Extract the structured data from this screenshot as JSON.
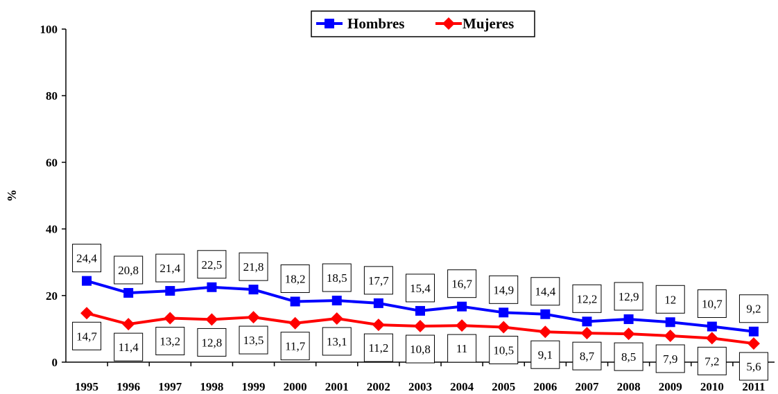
{
  "chart_data": {
    "type": "line",
    "title": "",
    "xlabel": "",
    "ylabel": "%",
    "ylim": [
      0,
      100
    ],
    "yticks": [
      "0",
      "20",
      "40",
      "60",
      "80",
      "100"
    ],
    "categories": [
      "1995",
      "1996",
      "1997",
      "1998",
      "1999",
      "2000",
      "2001",
      "2002",
      "2003",
      "2004",
      "2005",
      "2006",
      "2007",
      "2008",
      "2009",
      "2010",
      "2011"
    ],
    "legend_position": "top-center",
    "series": [
      {
        "name": "Hombres",
        "color": "#0000ff",
        "marker": "square",
        "values": [
          24.4,
          20.8,
          21.4,
          22.5,
          21.8,
          18.2,
          18.5,
          17.7,
          15.4,
          16.7,
          14.9,
          14.4,
          12.2,
          12.9,
          12,
          10.7,
          9.2
        ],
        "labels": [
          "24,4",
          "20,8",
          "21,4",
          "22,5",
          "21,8",
          "18,2",
          "18,5",
          "17,7",
          "15,4",
          "16,7",
          "14,9",
          "14,4",
          "12,2",
          "12,9",
          "12",
          "10,7",
          "9,2"
        ],
        "label_position": "above"
      },
      {
        "name": "Mujeres",
        "color": "#ff0000",
        "marker": "diamond",
        "values": [
          14.7,
          11.4,
          13.2,
          12.8,
          13.5,
          11.7,
          13.1,
          11.2,
          10.8,
          11,
          10.5,
          9.1,
          8.7,
          8.5,
          7.9,
          7.2,
          5.6
        ],
        "labels": [
          "14,7",
          "11,4",
          "13,2",
          "12,8",
          "13,5",
          "11,7",
          "13,1",
          "11,2",
          "10,8",
          "11",
          "10,5",
          "9,1",
          "8,7",
          "8,5",
          "7,9",
          "7,2",
          "5,6"
        ],
        "label_position": "below"
      }
    ]
  }
}
